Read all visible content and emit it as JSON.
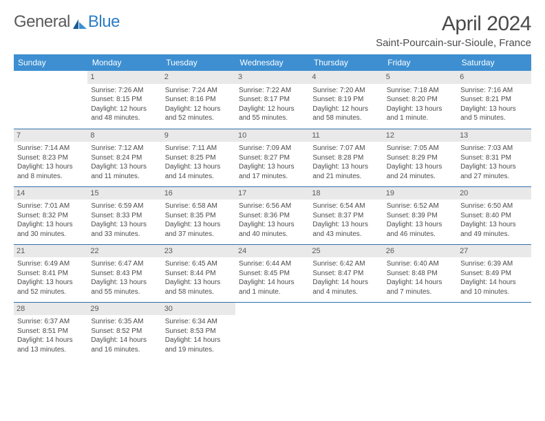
{
  "logo": {
    "text_a": "General",
    "text_b": "Blue"
  },
  "title": "April 2024",
  "location": "Saint-Pourcain-sur-Sioule, France",
  "day_headers": [
    "Sunday",
    "Monday",
    "Tuesday",
    "Wednesday",
    "Thursday",
    "Friday",
    "Saturday"
  ],
  "colors": {
    "header_bg": "#3d8fd1",
    "header_text": "#ffffff",
    "daynum_bg": "#e9e9e9",
    "rule": "#2d6fa8",
    "body_text": "#4a4a4a",
    "logo_blue": "#2d7dc4"
  },
  "weeks": [
    [
      {
        "num": "",
        "sunrise": "",
        "sunset": "",
        "daylight": ""
      },
      {
        "num": "1",
        "sunrise": "Sunrise: 7:26 AM",
        "sunset": "Sunset: 8:15 PM",
        "daylight": "Daylight: 12 hours and 48 minutes."
      },
      {
        "num": "2",
        "sunrise": "Sunrise: 7:24 AM",
        "sunset": "Sunset: 8:16 PM",
        "daylight": "Daylight: 12 hours and 52 minutes."
      },
      {
        "num": "3",
        "sunrise": "Sunrise: 7:22 AM",
        "sunset": "Sunset: 8:17 PM",
        "daylight": "Daylight: 12 hours and 55 minutes."
      },
      {
        "num": "4",
        "sunrise": "Sunrise: 7:20 AM",
        "sunset": "Sunset: 8:19 PM",
        "daylight": "Daylight: 12 hours and 58 minutes."
      },
      {
        "num": "5",
        "sunrise": "Sunrise: 7:18 AM",
        "sunset": "Sunset: 8:20 PM",
        "daylight": "Daylight: 13 hours and 1 minute."
      },
      {
        "num": "6",
        "sunrise": "Sunrise: 7:16 AM",
        "sunset": "Sunset: 8:21 PM",
        "daylight": "Daylight: 13 hours and 5 minutes."
      }
    ],
    [
      {
        "num": "7",
        "sunrise": "Sunrise: 7:14 AM",
        "sunset": "Sunset: 8:23 PM",
        "daylight": "Daylight: 13 hours and 8 minutes."
      },
      {
        "num": "8",
        "sunrise": "Sunrise: 7:12 AM",
        "sunset": "Sunset: 8:24 PM",
        "daylight": "Daylight: 13 hours and 11 minutes."
      },
      {
        "num": "9",
        "sunrise": "Sunrise: 7:11 AM",
        "sunset": "Sunset: 8:25 PM",
        "daylight": "Daylight: 13 hours and 14 minutes."
      },
      {
        "num": "10",
        "sunrise": "Sunrise: 7:09 AM",
        "sunset": "Sunset: 8:27 PM",
        "daylight": "Daylight: 13 hours and 17 minutes."
      },
      {
        "num": "11",
        "sunrise": "Sunrise: 7:07 AM",
        "sunset": "Sunset: 8:28 PM",
        "daylight": "Daylight: 13 hours and 21 minutes."
      },
      {
        "num": "12",
        "sunrise": "Sunrise: 7:05 AM",
        "sunset": "Sunset: 8:29 PM",
        "daylight": "Daylight: 13 hours and 24 minutes."
      },
      {
        "num": "13",
        "sunrise": "Sunrise: 7:03 AM",
        "sunset": "Sunset: 8:31 PM",
        "daylight": "Daylight: 13 hours and 27 minutes."
      }
    ],
    [
      {
        "num": "14",
        "sunrise": "Sunrise: 7:01 AM",
        "sunset": "Sunset: 8:32 PM",
        "daylight": "Daylight: 13 hours and 30 minutes."
      },
      {
        "num": "15",
        "sunrise": "Sunrise: 6:59 AM",
        "sunset": "Sunset: 8:33 PM",
        "daylight": "Daylight: 13 hours and 33 minutes."
      },
      {
        "num": "16",
        "sunrise": "Sunrise: 6:58 AM",
        "sunset": "Sunset: 8:35 PM",
        "daylight": "Daylight: 13 hours and 37 minutes."
      },
      {
        "num": "17",
        "sunrise": "Sunrise: 6:56 AM",
        "sunset": "Sunset: 8:36 PM",
        "daylight": "Daylight: 13 hours and 40 minutes."
      },
      {
        "num": "18",
        "sunrise": "Sunrise: 6:54 AM",
        "sunset": "Sunset: 8:37 PM",
        "daylight": "Daylight: 13 hours and 43 minutes."
      },
      {
        "num": "19",
        "sunrise": "Sunrise: 6:52 AM",
        "sunset": "Sunset: 8:39 PM",
        "daylight": "Daylight: 13 hours and 46 minutes."
      },
      {
        "num": "20",
        "sunrise": "Sunrise: 6:50 AM",
        "sunset": "Sunset: 8:40 PM",
        "daylight": "Daylight: 13 hours and 49 minutes."
      }
    ],
    [
      {
        "num": "21",
        "sunrise": "Sunrise: 6:49 AM",
        "sunset": "Sunset: 8:41 PM",
        "daylight": "Daylight: 13 hours and 52 minutes."
      },
      {
        "num": "22",
        "sunrise": "Sunrise: 6:47 AM",
        "sunset": "Sunset: 8:43 PM",
        "daylight": "Daylight: 13 hours and 55 minutes."
      },
      {
        "num": "23",
        "sunrise": "Sunrise: 6:45 AM",
        "sunset": "Sunset: 8:44 PM",
        "daylight": "Daylight: 13 hours and 58 minutes."
      },
      {
        "num": "24",
        "sunrise": "Sunrise: 6:44 AM",
        "sunset": "Sunset: 8:45 PM",
        "daylight": "Daylight: 14 hours and 1 minute."
      },
      {
        "num": "25",
        "sunrise": "Sunrise: 6:42 AM",
        "sunset": "Sunset: 8:47 PM",
        "daylight": "Daylight: 14 hours and 4 minutes."
      },
      {
        "num": "26",
        "sunrise": "Sunrise: 6:40 AM",
        "sunset": "Sunset: 8:48 PM",
        "daylight": "Daylight: 14 hours and 7 minutes."
      },
      {
        "num": "27",
        "sunrise": "Sunrise: 6:39 AM",
        "sunset": "Sunset: 8:49 PM",
        "daylight": "Daylight: 14 hours and 10 minutes."
      }
    ],
    [
      {
        "num": "28",
        "sunrise": "Sunrise: 6:37 AM",
        "sunset": "Sunset: 8:51 PM",
        "daylight": "Daylight: 14 hours and 13 minutes."
      },
      {
        "num": "29",
        "sunrise": "Sunrise: 6:35 AM",
        "sunset": "Sunset: 8:52 PM",
        "daylight": "Daylight: 14 hours and 16 minutes."
      },
      {
        "num": "30",
        "sunrise": "Sunrise: 6:34 AM",
        "sunset": "Sunset: 8:53 PM",
        "daylight": "Daylight: 14 hours and 19 minutes."
      },
      {
        "num": "",
        "sunrise": "",
        "sunset": "",
        "daylight": ""
      },
      {
        "num": "",
        "sunrise": "",
        "sunset": "",
        "daylight": ""
      },
      {
        "num": "",
        "sunrise": "",
        "sunset": "",
        "daylight": ""
      },
      {
        "num": "",
        "sunrise": "",
        "sunset": "",
        "daylight": ""
      }
    ]
  ]
}
